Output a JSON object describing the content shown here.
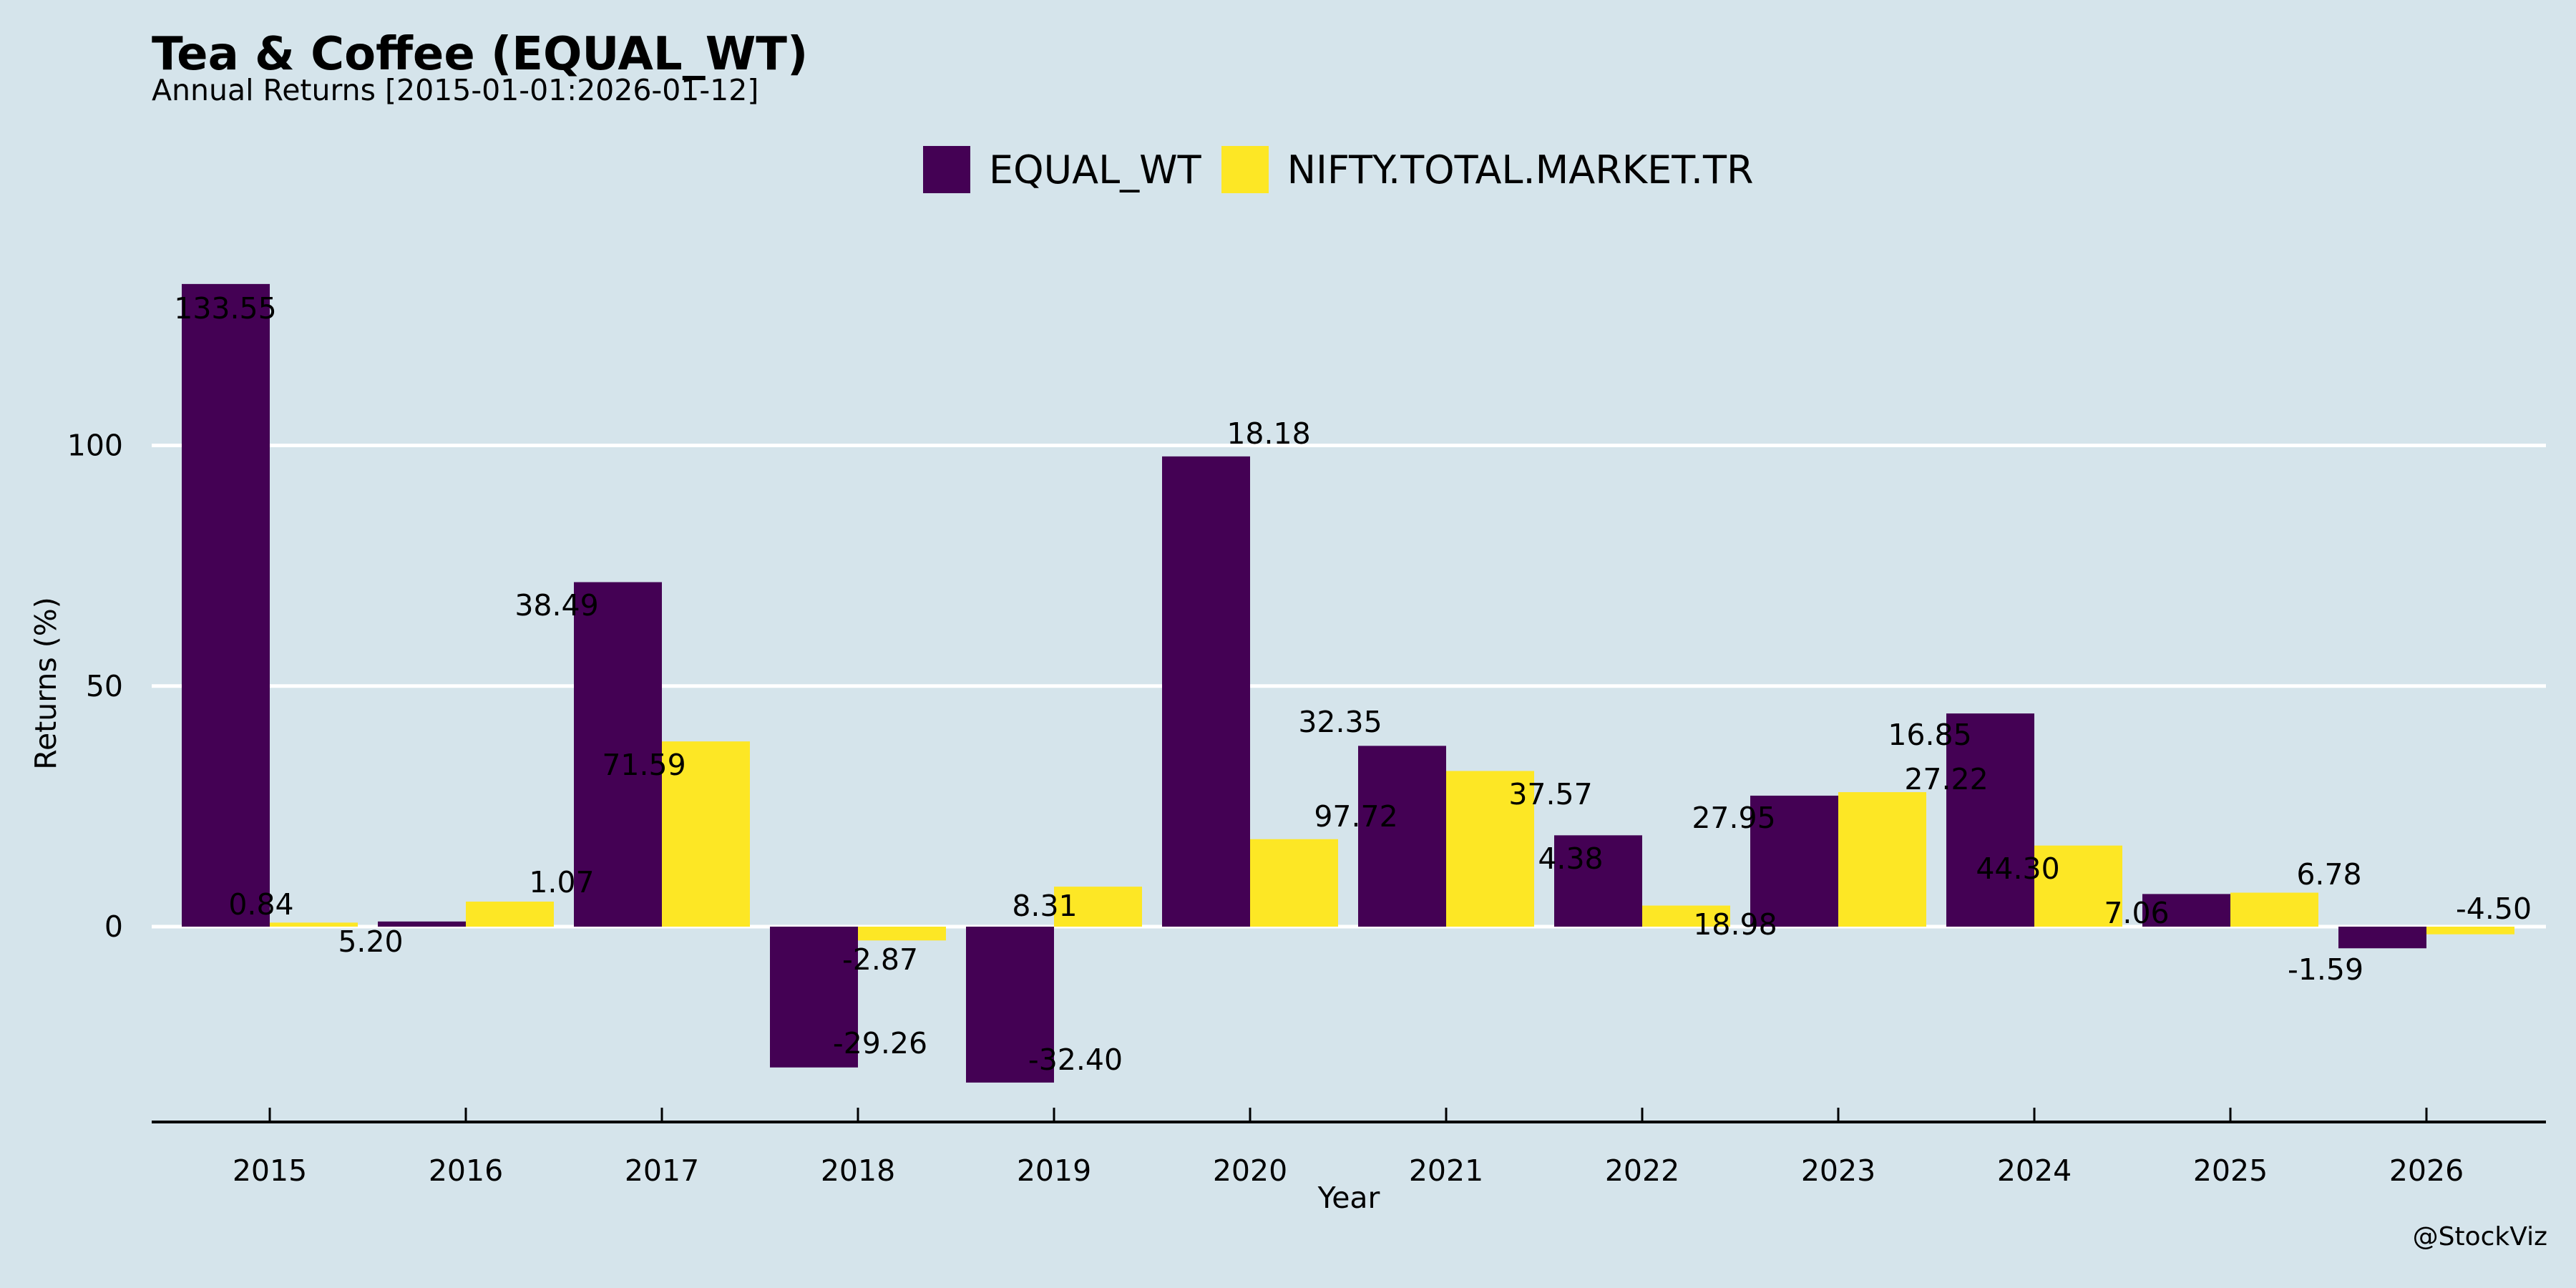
{
  "header": {
    "title": "Tea & Coffee (EQUAL_WT)",
    "subtitle": "Annual Returns [2015-01-01:2026-01-12]"
  },
  "watermark": "@StockViz",
  "chart_data": {
    "type": "bar",
    "title": "Tea & Coffee (EQUAL_WT)",
    "subtitle": "Annual Returns [2015-01-01:2026-01-12]",
    "xlabel": "Year",
    "ylabel": "Returns (%)",
    "categories": [
      "2015",
      "2016",
      "2017",
      "2018",
      "2019",
      "2020",
      "2021",
      "2022",
      "2023",
      "2024",
      "2025",
      "2026"
    ],
    "series": [
      {
        "name": "EQUAL_WT",
        "color": "#440154",
        "values": [
          133.55,
          1.07,
          71.59,
          -29.26,
          -32.4,
          97.72,
          37.57,
          18.98,
          27.22,
          44.3,
          6.78,
          -4.5
        ]
      },
      {
        "name": "NIFTY.TOTAL.MARKET.TR",
        "color": "#fde725",
        "values": [
          0.84,
          5.2,
          38.49,
          -2.87,
          8.31,
          18.18,
          32.35,
          4.38,
          27.95,
          16.85,
          7.06,
          -1.59
        ]
      }
    ],
    "yticks": [
      0,
      50,
      100
    ],
    "ylim": [
      -40,
      140
    ],
    "grid": true,
    "legend_position": "top-center",
    "background": "#d5e4eb",
    "grid_color": "#ffffff"
  }
}
